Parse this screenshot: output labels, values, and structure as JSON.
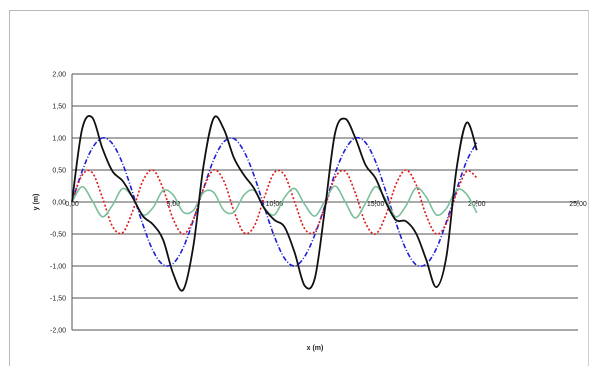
{
  "chart_data": {
    "type": "line",
    "title": "",
    "xlabel": "x (m)",
    "ylabel": "y (m)",
    "xlim": [
      0,
      25
    ],
    "ylim": [
      -2,
      2
    ],
    "x_ticks": [
      "0,00",
      "5,00",
      "10,00",
      "15,00",
      "20,00",
      "25,00"
    ],
    "y_ticks": [
      "2,00",
      "1,50",
      "1,00",
      "0,50",
      "0,00",
      "-0,50",
      "-1,00",
      "-1,50",
      "-2,00"
    ],
    "grid": true,
    "legend": "none",
    "x": [
      0,
      0.5,
      1,
      1.5,
      2,
      2.5,
      3,
      3.5,
      4,
      4.5,
      5,
      5.5,
      6,
      6.5,
      7,
      7.5,
      8,
      8.5,
      9,
      9.5,
      10,
      10.5,
      11,
      11.5,
      12,
      12.5,
      13,
      13.5,
      14,
      14.5,
      15,
      15.5,
      16,
      16.5,
      17,
      17.5,
      18,
      18.5,
      19,
      19.5,
      20
    ],
    "series": [
      {
        "color": "#1f1fd6",
        "style": "dash-dot",
        "values": [
          0.0,
          0.48,
          0.84,
          1.0,
          0.91,
          0.6,
          0.14,
          -0.35,
          -0.76,
          -0.98,
          -0.96,
          -0.71,
          -0.28,
          0.21,
          0.66,
          0.94,
          0.99,
          0.79,
          0.41,
          -0.08,
          -0.54,
          -0.88,
          -1.0,
          -0.85,
          -0.51,
          -0.05,
          0.45,
          0.82,
          1.0,
          0.93,
          0.63,
          0.17,
          -0.32,
          -0.74,
          -0.98,
          -0.97,
          -0.73,
          -0.31,
          0.19,
          0.64,
          0.93
        ]
      },
      {
        "color": "#e01818",
        "style": "dotted",
        "values": [
          0.0,
          0.42,
          0.46,
          0.07,
          -0.38,
          -0.48,
          -0.14,
          0.33,
          0.5,
          0.21,
          -0.27,
          -0.5,
          -0.27,
          0.21,
          0.5,
          0.33,
          -0.14,
          -0.48,
          -0.38,
          0.07,
          0.46,
          0.42,
          0.0,
          -0.42,
          -0.46,
          -0.07,
          0.38,
          0.48,
          0.14,
          -0.33,
          -0.5,
          -0.21,
          0.27,
          0.5,
          0.27,
          -0.21,
          -0.5,
          -0.33,
          0.14,
          0.48,
          0.38
        ]
      },
      {
        "color": "#7dbf9c",
        "style": "solid",
        "values": [
          0.0,
          0.24,
          0.02,
          -0.23,
          -0.05,
          0.21,
          0.07,
          -0.2,
          -0.09,
          0.18,
          0.11,
          -0.16,
          -0.13,
          0.15,
          0.15,
          -0.13,
          -0.16,
          0.11,
          0.18,
          -0.09,
          -0.2,
          0.07,
          0.21,
          -0.04,
          -0.22,
          0.02,
          0.25,
          0.0,
          -0.25,
          -0.02,
          0.24,
          0.04,
          -0.23,
          -0.06,
          0.22,
          0.08,
          -0.2,
          -0.1,
          0.19,
          0.12,
          -0.17
        ]
      },
      {
        "color": "#111111",
        "style": "solid",
        "values": [
          0.0,
          1.14,
          1.32,
          0.84,
          0.48,
          0.33,
          0.07,
          -0.22,
          -0.35,
          -0.59,
          -1.12,
          -1.37,
          -0.68,
          0.57,
          1.31,
          1.14,
          0.69,
          0.42,
          0.21,
          -0.1,
          -0.28,
          -0.39,
          -0.79,
          -1.31,
          -1.19,
          -0.1,
          1.08,
          1.3,
          1.0,
          0.58,
          0.37,
          0.0,
          -0.28,
          -0.3,
          -0.49,
          -0.9,
          -1.33,
          -0.85,
          0.52,
          1.24,
          0.81
        ]
      }
    ]
  }
}
